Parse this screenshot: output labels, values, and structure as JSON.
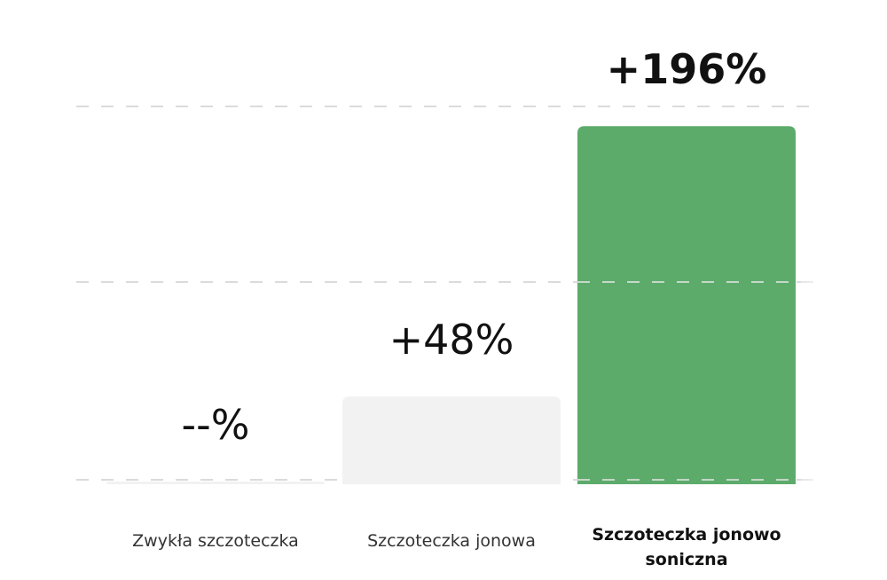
{
  "chart_data": {
    "type": "bar",
    "title": "",
    "xlabel": "",
    "ylabel": "",
    "categories": [
      "Zwykła szczoteczka",
      "Szczoteczka jonowa",
      "Szczoteczka jonowo soniczna"
    ],
    "category_lines": [
      [
        "Zwykła szczoteczka"
      ],
      [
        "Szczoteczka jonowa"
      ],
      [
        "Szczoteczka jonowo",
        "soniczna"
      ]
    ],
    "values": [
      0,
      48,
      196
    ],
    "value_labels": [
      "--%",
      "+48%",
      "+196%"
    ],
    "highlight_index": 2,
    "ylim": [
      0,
      200
    ],
    "grid": true,
    "colors": {
      "highlight_bar": "#5cab6b",
      "regular_bar": "#f2f2f2",
      "gridline": "#cfcfcf",
      "text": "#111111"
    }
  }
}
